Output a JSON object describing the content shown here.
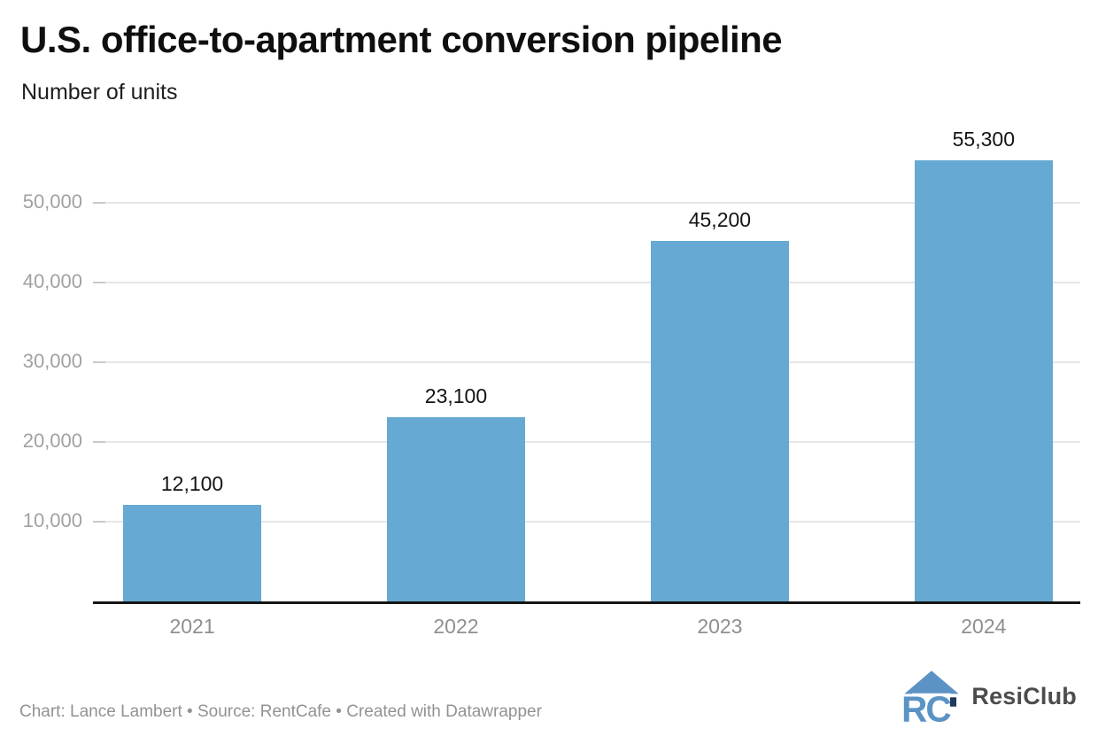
{
  "header": {
    "title": "U.S. office-to-apartment conversion pipeline",
    "subtitle": "Number of units"
  },
  "chart_data": {
    "type": "bar",
    "title": "U.S. office-to-apartment conversion pipeline",
    "subtitle": "Number of units",
    "categories": [
      "2021",
      "2022",
      "2023",
      "2024"
    ],
    "values": [
      12100,
      23100,
      45200,
      55300
    ],
    "value_labels": [
      "12,100",
      "23,100",
      "45,200",
      "55,300"
    ],
    "xlabel": "",
    "ylabel": "Number of units",
    "ylim": [
      0,
      59300
    ],
    "yticks": [
      10000,
      20000,
      30000,
      40000,
      50000
    ],
    "ytick_labels": [
      "10,000",
      "20,000",
      "30,000",
      "40,000",
      "50,000"
    ],
    "grid": "horizontal-only",
    "legend": "none",
    "bar_color": "#66a9d2",
    "axis_color": "#161616",
    "gridline_color": "#e7e7e7"
  },
  "footer": {
    "credit": "Chart: Lance Lambert • Source: RentCafe • Created with Datawrapper"
  },
  "logo": {
    "text": "ResiClub",
    "icon": "resiclub-house-rc-icon",
    "blue": "#5b93c5",
    "navy": "#1f3a5c"
  }
}
